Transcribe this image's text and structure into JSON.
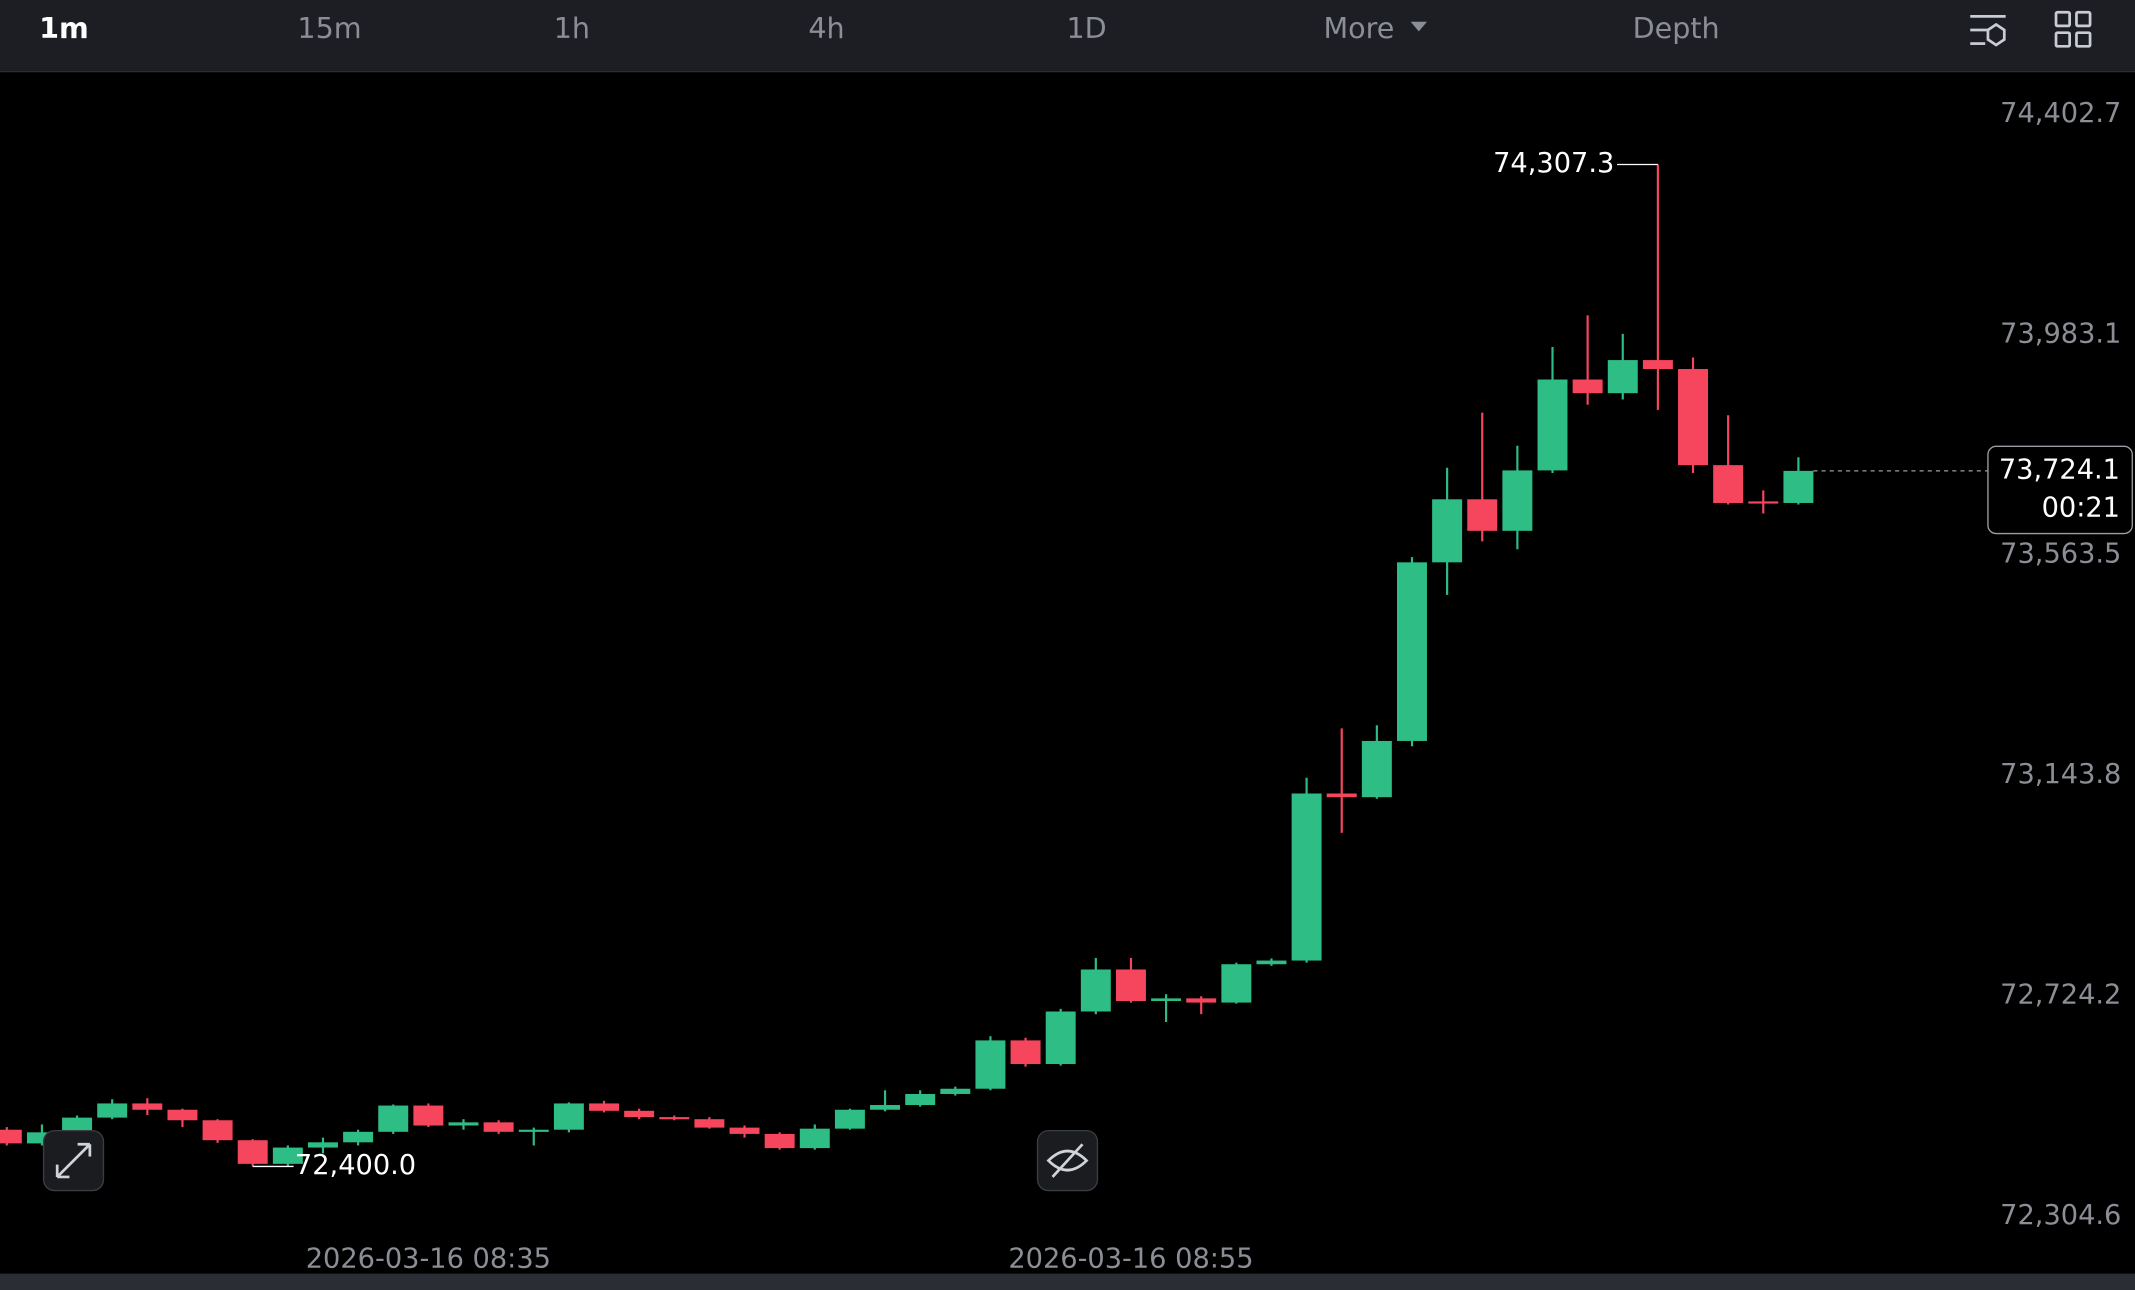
{
  "toolbar": {
    "tabs": [
      "1m",
      "15m",
      "1h",
      "4h",
      "1D",
      "More",
      "Depth"
    ]
  },
  "chart_data": {
    "type": "candlestick",
    "categories": [
      null,
      null,
      null,
      null,
      null,
      null,
      null,
      null,
      null,
      null,
      null,
      null,
      "2026-03-16 08:35",
      null,
      null,
      null,
      null,
      null,
      null,
      null,
      null,
      null,
      null,
      null,
      null,
      null,
      null,
      null,
      null,
      null,
      null,
      null,
      "2026-03-16 08:55",
      null,
      null,
      null,
      null,
      null,
      null,
      null,
      null,
      null,
      null,
      null,
      null,
      null,
      null,
      null,
      null,
      null,
      null,
      null
    ],
    "open": [
      72470,
      72444,
      72465,
      72493,
      72520,
      72508,
      72488,
      72450,
      72405,
      72436,
      72446,
      72466,
      72516,
      72478,
      72484,
      72466,
      72470,
      72520,
      72506,
      72494,
      72490,
      72474,
      72462,
      72435,
      72472,
      72508,
      72517,
      72538,
      72548,
      72640,
      72595,
      72695,
      72775,
      72715,
      72720,
      72712,
      72785,
      72792,
      73110,
      73103,
      73210,
      73550,
      73670,
      73610,
      73725,
      73898,
      73872,
      73935,
      73918,
      73735,
      73666,
      73663
    ],
    "high": [
      72475,
      72480,
      72497,
      72528,
      72530,
      72510,
      72490,
      72452,
      72440,
      72455,
      72470,
      72518,
      72520,
      72490,
      72488,
      72474,
      72522,
      72525,
      72510,
      72497,
      72494,
      72478,
      72465,
      72480,
      72510,
      72545,
      72545,
      72552,
      72648,
      72645,
      72700,
      72797,
      72797,
      72728,
      72724,
      72788,
      72796,
      73140,
      73234,
      73240,
      73560,
      73730,
      73835,
      73772,
      73960,
      74020,
      73985,
      74307.3,
      73940,
      73830,
      73687,
      73750
    ],
    "low": [
      72440,
      72440,
      72460,
      72490,
      72498,
      72475,
      72445,
      72400.0,
      72401,
      72425,
      72440,
      72462,
      72475,
      72470,
      72462,
      72440,
      72465,
      72503,
      72490,
      72488,
      72472,
      72455,
      72432,
      72432,
      72470,
      72505,
      72514,
      72535,
      72545,
      72590,
      72592,
      72690,
      72712,
      72675,
      72690,
      72710,
      72782,
      72788,
      73035,
      73100,
      73200,
      73488,
      73590,
      73575,
      73720,
      73850,
      73860,
      73840,
      73720,
      73660,
      73643,
      73660
    ],
    "close": [
      72444,
      72465,
      72493,
      72520,
      72508,
      72488,
      72450,
      72405,
      72436,
      72446,
      72466,
      72516,
      72478,
      72484,
      72466,
      72470,
      72520,
      72506,
      72494,
      72490,
      72474,
      72462,
      72435,
      72472,
      72508,
      72517,
      72538,
      72548,
      72640,
      72595,
      72695,
      72775,
      72715,
      72720,
      72712,
      72785,
      72792,
      73110,
      73103,
      73210,
      73550,
      73670,
      73610,
      73725,
      73898,
      73872,
      73935,
      73918,
      73735,
      73663,
      73663,
      73724.1
    ],
    "up_color": "#2ebd85",
    "down_color": "#f6465d",
    "ylim": [
      72196,
      74483
    ],
    "yticks": [
      {
        "value": 74402.7,
        "label": "74,402.7"
      },
      {
        "value": 73983.1,
        "label": "73,983.1"
      },
      {
        "value": 73563.5,
        "label": "73,563.5"
      },
      {
        "value": 73143.8,
        "label": "73,143.8"
      },
      {
        "value": 72724.2,
        "label": "72,724.2"
      },
      {
        "value": 72304.6,
        "label": "72,304.6"
      }
    ],
    "high_label": "74,307.3",
    "low_label": "72,400.0",
    "last_price_label": "73,724.1",
    "countdown": "00:21"
  }
}
